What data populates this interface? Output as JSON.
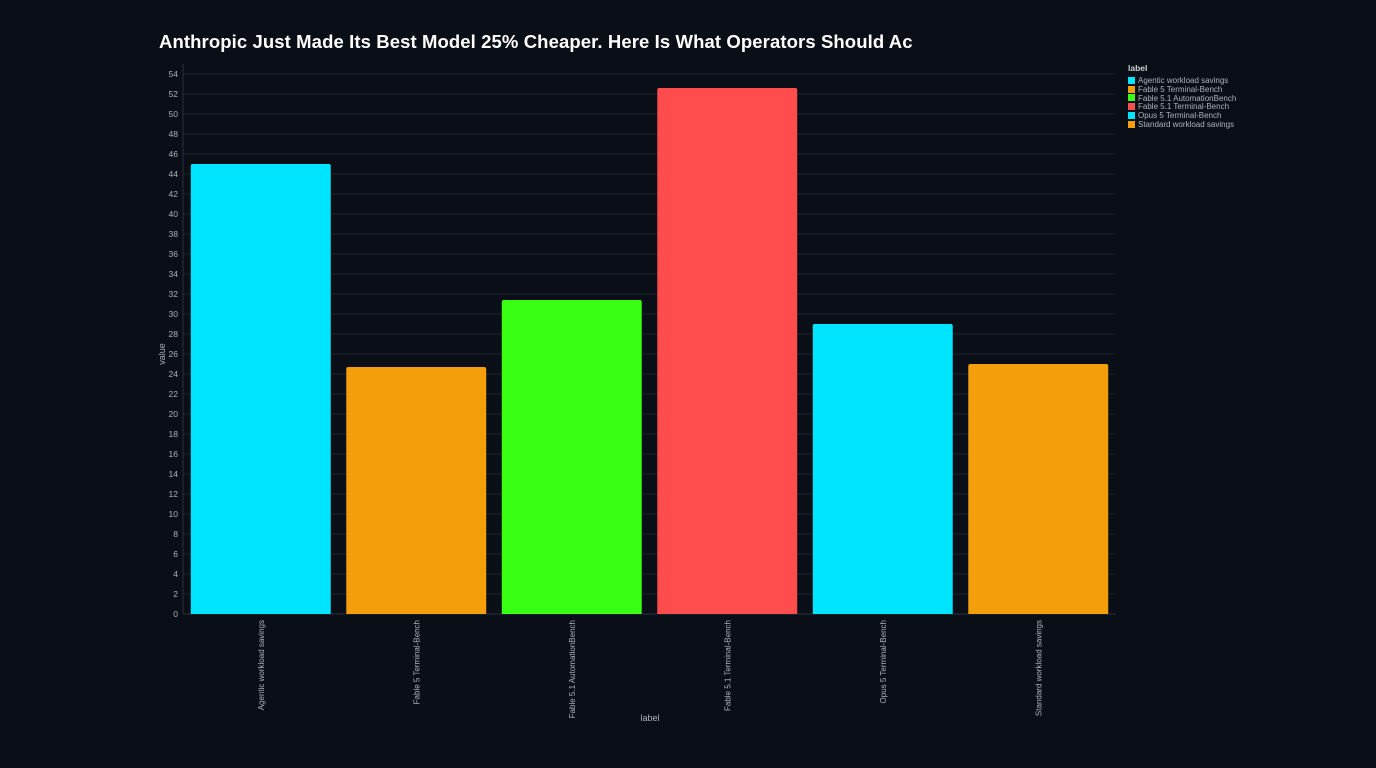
{
  "chart_data": {
    "type": "bar",
    "title": "Anthropic Just Made Its Best Model 25% Cheaper. Here Is What Operators Should Ac",
    "xlabel": "label",
    "ylabel": "value",
    "ylim": [
      0,
      55
    ],
    "y_ticks": [
      0,
      2,
      4,
      6,
      8,
      10,
      12,
      14,
      16,
      18,
      20,
      22,
      24,
      26,
      28,
      30,
      32,
      34,
      36,
      38,
      40,
      42,
      44,
      46,
      48,
      50,
      52,
      54
    ],
    "grid": true,
    "legend_placement": "top-right outside",
    "legend_title": "label",
    "categories": [
      "Agentic workload savings",
      "Fable 5 Terminal-Bench",
      "Fable 5.1 AutomationBench",
      "Fable 5.1 Terminal-Bench",
      "Opus 5 Terminal-Bench",
      "Standard workload savings"
    ],
    "values": [
      45,
      24.7,
      31.4,
      52.6,
      29,
      25
    ],
    "colors": [
      "#00e5ff",
      "#f59e0b",
      "#39ff14",
      "#ff4d4d",
      "#00e5ff",
      "#f59e0b"
    ]
  }
}
